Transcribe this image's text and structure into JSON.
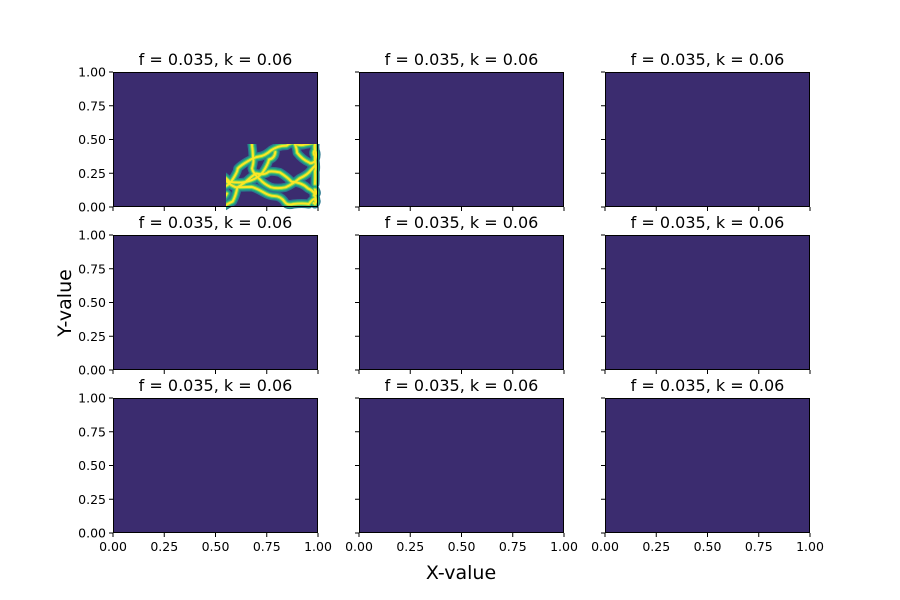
{
  "figure": {
    "xlabel": "X-value",
    "ylabel": "Y-value"
  },
  "chart_data": {
    "type": "heatmap",
    "colormap": "viridis",
    "grid": false,
    "layout": "3x3",
    "xlim": [
      0,
      1
    ],
    "ylim": [
      0,
      1
    ],
    "xticks": [
      "0.00",
      "0.25",
      "0.50",
      "0.75",
      "1.00"
    ],
    "yticks": [
      "0.00",
      "0.25",
      "0.50",
      "0.75",
      "1.00"
    ],
    "panels": [
      {
        "title": "f = 0.035, k = 0.06"
      },
      {
        "title": "f = 0.035, k = 0.06"
      },
      {
        "title": "f = 0.035, k = 0.06"
      },
      {
        "title": "f = 0.035, k = 0.06"
      },
      {
        "title": "f = 0.035, k = 0.06"
      },
      {
        "title": "f = 0.035, k = 0.06"
      },
      {
        "title": "f = 0.035, k = 0.06"
      },
      {
        "title": "f = 0.035, k = 0.06"
      },
      {
        "title": "f = 0.035, k = 0.06"
      }
    ]
  }
}
